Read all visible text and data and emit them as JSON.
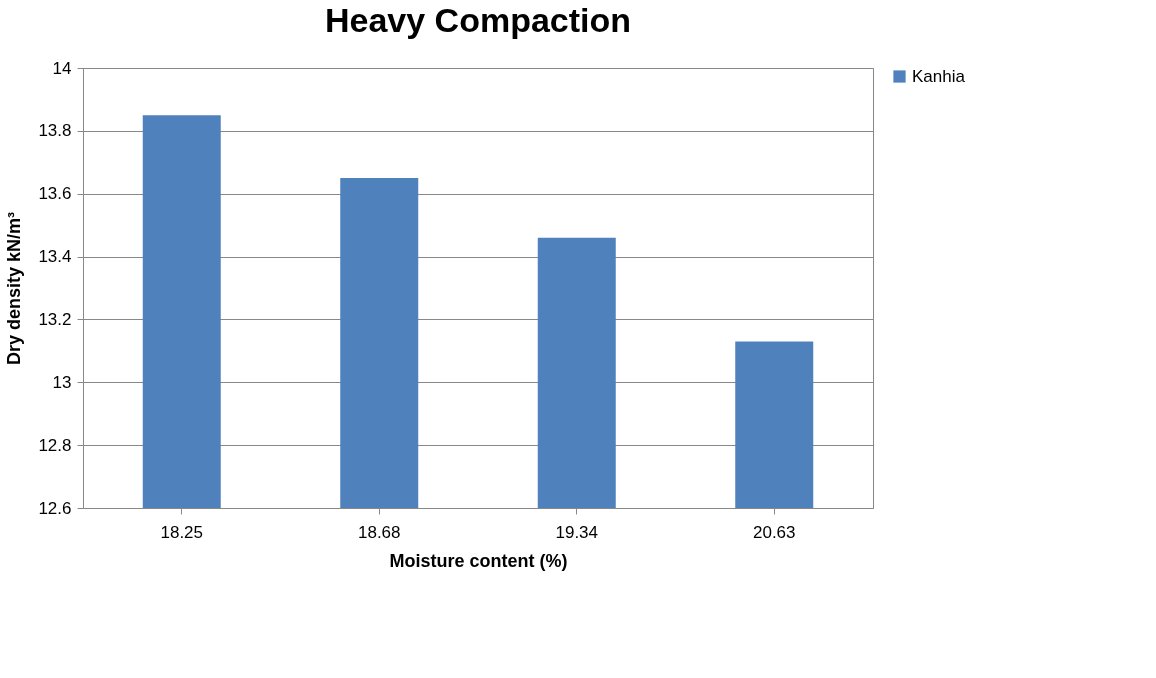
{
  "chart_data": {
    "type": "bar",
    "title": "Heavy Compaction",
    "xlabel": "Moisture content (%)",
    "ylabel": "Dry density kN/m³",
    "categories": [
      "18.25",
      "18.68",
      "19.34",
      "20.63"
    ],
    "series": [
      {
        "name": "Kanhia",
        "color": "#4f81bd",
        "values": [
          13.85,
          13.65,
          13.46,
          13.13
        ]
      }
    ],
    "ylim": [
      12.6,
      14
    ],
    "yticks": [
      12.6,
      12.8,
      13,
      13.2,
      13.4,
      13.6,
      13.8,
      14
    ],
    "grid": "y",
    "legend": "right"
  }
}
